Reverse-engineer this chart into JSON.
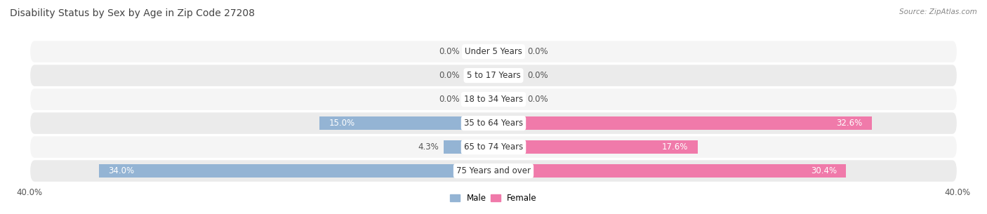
{
  "title": "Disability Status by Sex by Age in Zip Code 27208",
  "source": "Source: ZipAtlas.com",
  "categories": [
    "Under 5 Years",
    "5 to 17 Years",
    "18 to 34 Years",
    "35 to 64 Years",
    "65 to 74 Years",
    "75 Years and over"
  ],
  "male_values": [
    0.0,
    0.0,
    0.0,
    15.0,
    4.3,
    34.0
  ],
  "female_values": [
    0.0,
    0.0,
    0.0,
    32.6,
    17.6,
    30.4
  ],
  "male_color": "#94b4d4",
  "female_color": "#f07aaa",
  "row_bg_light": "#f5f5f5",
  "row_bg_dark": "#ebebeb",
  "xlim": 40.0,
  "min_bar_val": 2.5,
  "title_fontsize": 10,
  "label_fontsize": 8.5,
  "axis_fontsize": 8.5,
  "bar_height": 0.58,
  "legend_male": "Male",
  "legend_female": "Female",
  "text_color": "#555555",
  "title_color": "#444444"
}
